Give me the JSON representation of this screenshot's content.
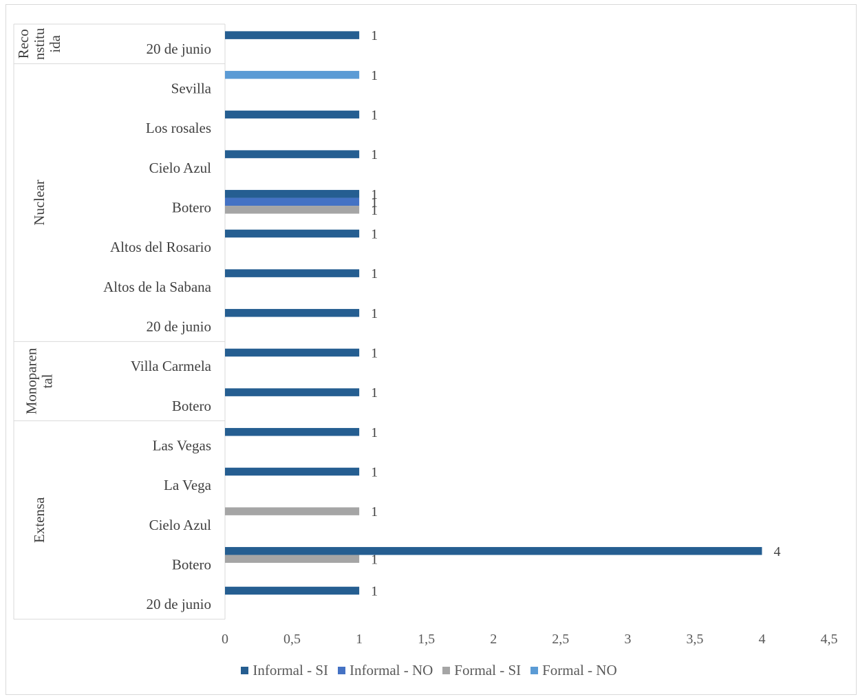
{
  "chart_data": {
    "type": "bar",
    "orientation": "horizontal",
    "xlim": [
      0,
      4.5
    ],
    "x_ticks": [
      "0",
      "0,5",
      "1",
      "1,5",
      "2",
      "2,5",
      "3",
      "3,5",
      "4",
      "4,5"
    ],
    "grid": false,
    "legend_position": "bottom",
    "series": [
      {
        "name": "Informal - SI",
        "color": "#255e91"
      },
      {
        "name": "Informal - NO",
        "color": "#4472c4"
      },
      {
        "name": "Formal - SI",
        "color": "#a5a5a5"
      },
      {
        "name": "Formal - NO",
        "color": "#5b9bd5"
      }
    ],
    "groups": [
      {
        "name": "Reconstituida",
        "label_lines": [
          "Reco",
          "nstitu",
          "ida"
        ],
        "categories": [
          {
            "label": "20 de junio",
            "values": [
              1,
              null,
              null,
              null
            ]
          }
        ]
      },
      {
        "name": "Nuclear",
        "label_lines": [
          "Nuclear"
        ],
        "categories": [
          {
            "label": "Sevilla",
            "values": [
              null,
              null,
              null,
              1
            ]
          },
          {
            "label": "Los rosales",
            "values": [
              1,
              null,
              null,
              null
            ]
          },
          {
            "label": "Cielo Azul",
            "values": [
              1,
              null,
              null,
              null
            ]
          },
          {
            "label": "Botero",
            "values": [
              1,
              1,
              1,
              null
            ]
          },
          {
            "label": "Altos del Rosario",
            "values": [
              1,
              null,
              null,
              null
            ]
          },
          {
            "label": "Altos de la Sabana",
            "values": [
              1,
              null,
              null,
              null
            ]
          },
          {
            "label": "20 de junio",
            "values": [
              1,
              null,
              null,
              null
            ]
          }
        ]
      },
      {
        "name": "Monoparental",
        "label_lines": [
          "Monoparen",
          "tal"
        ],
        "categories": [
          {
            "label": "Villa Carmela",
            "values": [
              1,
              null,
              null,
              null
            ]
          },
          {
            "label": "Botero",
            "values": [
              1,
              null,
              null,
              null
            ]
          }
        ]
      },
      {
        "name": "Extensa",
        "label_lines": [
          "Extensa"
        ],
        "categories": [
          {
            "label": "Las Vegas",
            "values": [
              1,
              null,
              null,
              null
            ]
          },
          {
            "label": "La Vega",
            "values": [
              1,
              null,
              null,
              null
            ]
          },
          {
            "label": "Cielo Azul",
            "values": [
              null,
              null,
              1,
              null
            ]
          },
          {
            "label": "Botero",
            "values": [
              4,
              null,
              1,
              null
            ]
          },
          {
            "label": "20 de junio",
            "values": [
              1,
              null,
              null,
              null
            ]
          }
        ]
      }
    ]
  }
}
